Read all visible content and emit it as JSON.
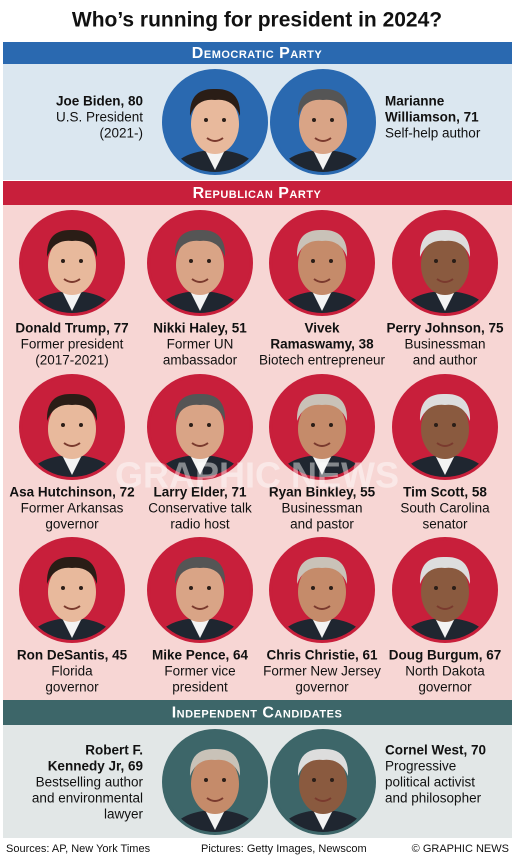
{
  "title": "Who’s running for president in 2024?",
  "sections": [
    {
      "header": "Democratic Party",
      "candidates": [
        {
          "name": [
            "Joe Biden, 80"
          ],
          "description": [
            "U.S. President",
            "(2021-)"
          ]
        },
        {
          "name": [
            "Marianne",
            "Williamson, 71"
          ],
          "description": [
            "Self-help author"
          ]
        }
      ]
    },
    {
      "header": "Republican Party",
      "candidates": [
        {
          "name": [
            "Donald Trump, 77"
          ],
          "description": [
            "Former president",
            "(2017-2021)"
          ]
        },
        {
          "name": [
            "Nikki Haley, 51"
          ],
          "description": [
            "Former UN",
            "ambassador"
          ]
        },
        {
          "name": [
            "Vivek",
            "Ramaswamy, 38"
          ],
          "description": [
            "Biotech entrepreneur"
          ]
        },
        {
          "name": [
            "Perry Johnson, 75"
          ],
          "description": [
            "Businessman",
            "and author"
          ]
        },
        {
          "name": [
            "Asa Hutchinson, 72"
          ],
          "description": [
            "Former Arkansas",
            "governor"
          ]
        },
        {
          "name": [
            "Larry Elder, 71"
          ],
          "description": [
            "Conservative talk",
            "radio host"
          ]
        },
        {
          "name": [
            "Ryan Binkley, 55"
          ],
          "description": [
            "Businessman",
            "and pastor"
          ]
        },
        {
          "name": [
            "Tim Scott, 58"
          ],
          "description": [
            "South Carolina",
            "senator"
          ]
        },
        {
          "name": [
            "Ron DeSantis, 45"
          ],
          "description": [
            "Florida",
            "governor"
          ]
        },
        {
          "name": [
            "Mike Pence, 64"
          ],
          "description": [
            "Former vice",
            "president"
          ]
        },
        {
          "name": [
            "Chris Christie, 61"
          ],
          "description": [
            "Former New Jersey",
            "governor"
          ]
        },
        {
          "name": [
            "Doug Burgum, 67"
          ],
          "description": [
            "North Dakota",
            "governor"
          ]
        }
      ]
    },
    {
      "header": "Independent Candidates",
      "candidates": [
        {
          "name": [
            "Robert F.",
            "Kennedy Jr, 69"
          ],
          "description": [
            "Bestselling author",
            "and environmental",
            "lawyer"
          ]
        },
        {
          "name": [
            "Cornel West, 70"
          ],
          "description": [
            "Progressive",
            "political activist",
            "and philosopher"
          ]
        }
      ]
    }
  ],
  "watermark": "GRAPHIC NEWS",
  "footer": {
    "sources": "Sources: AP, New York Times",
    "pictures": "Pictures: Getty Images, Newscom",
    "credit": "© GRAPHIC NEWS"
  }
}
